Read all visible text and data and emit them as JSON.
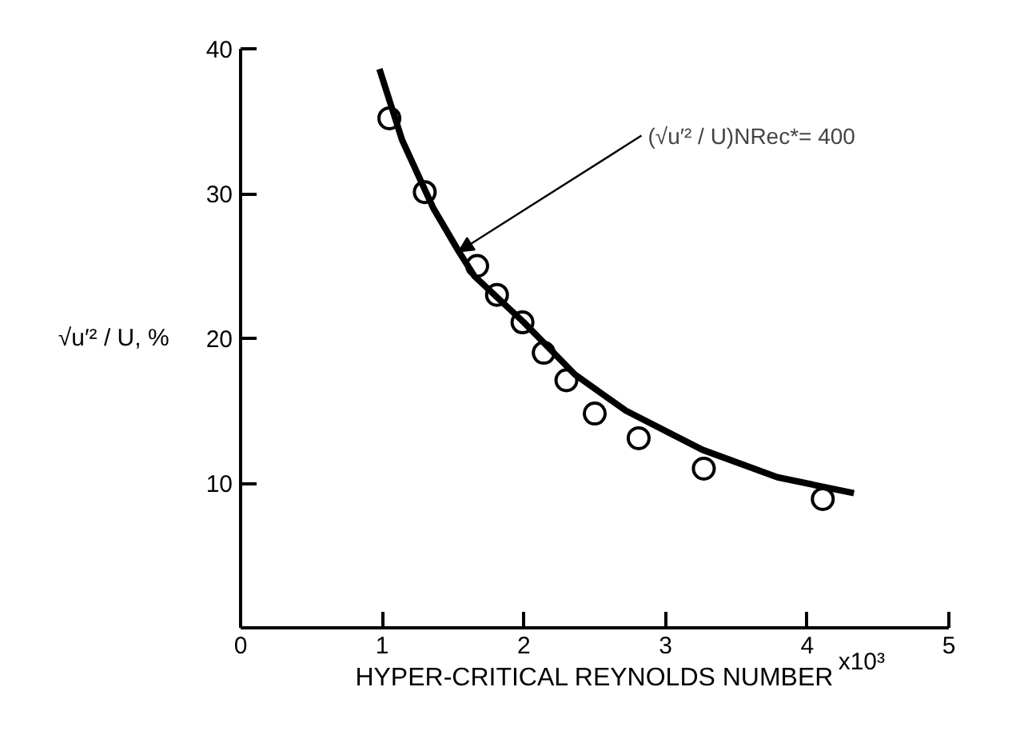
{
  "chart_data": {
    "type": "scatter",
    "xlabel": "HYPER-CRITICAL REYNOLDS NUMBER",
    "ylabel": "√u′² / U, %",
    "xlim": [
      0,
      5
    ],
    "ylim": [
      0,
      40
    ],
    "xticks": [
      0,
      1,
      2,
      3,
      4,
      5
    ],
    "yticks": [
      10,
      20,
      30,
      40
    ],
    "grid": false,
    "annotations": [
      "x10³",
      {
        "text": "(√u′² / U)NRec*= 400",
        "x": 1.54,
        "y": 26.0
      }
    ],
    "series": [
      {
        "marker": "circle",
        "color": "#000000",
        "x": [
          1.05,
          1.3,
          1.67,
          1.81,
          1.99,
          2.14,
          2.3,
          2.5,
          2.81,
          3.27,
          4.11
        ],
        "values": [
          35.2,
          30.1,
          25.0,
          23.0,
          21.1,
          19.0,
          17.1,
          14.8,
          13.1,
          11.0,
          8.9
        ]
      },
      {
        "type": "line",
        "color": "#000000",
        "x": [
          0.98,
          1.14,
          1.36,
          1.54,
          1.65,
          2.0,
          2.36,
          2.72,
          3.26,
          3.79,
          4.33
        ],
        "values": [
          38.6,
          33.7,
          29.0,
          26.0,
          24.3,
          21.1,
          17.5,
          15.0,
          12.3,
          10.4,
          9.3
        ]
      }
    ]
  }
}
